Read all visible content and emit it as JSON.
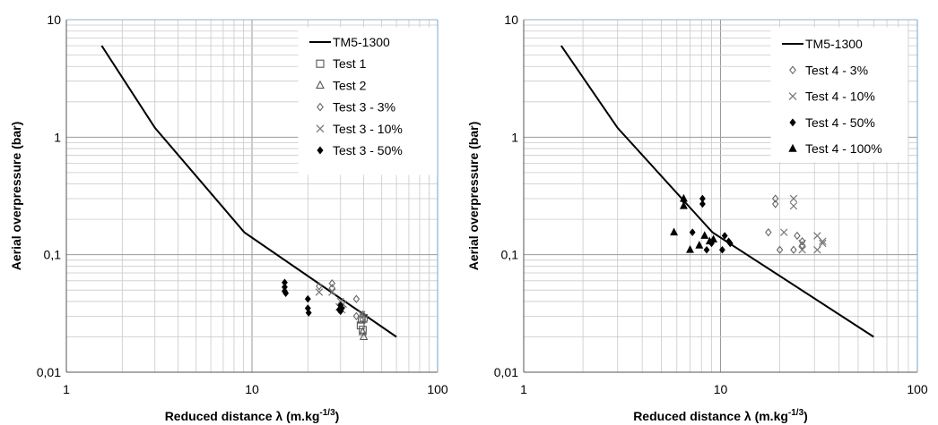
{
  "chart_data": [
    {
      "type": "scatter",
      "xscale": "log",
      "yscale": "log",
      "xlim": [
        1,
        100
      ],
      "ylim": [
        0.01,
        10
      ],
      "xticks": [
        "1",
        "10",
        "100"
      ],
      "yticks": [
        "0,01",
        "0,1",
        "1",
        "10"
      ],
      "xlabel": "Reduced distance λ (m.kg",
      "xlabel_sup": "-1/3",
      "xlabel_end": ")",
      "ylabel": "Aerial overpressure (bar)",
      "grid": true,
      "legend_position": "top-right",
      "series": [
        {
          "name": "TM5-1300",
          "marker": "line",
          "color": "#000000",
          "points": [
            [
              1.55,
              6
            ],
            [
              3,
              1.2
            ],
            [
              9.1,
              0.155
            ],
            [
              60,
              0.02
            ]
          ]
        },
        {
          "name": "Test 1",
          "marker": "square",
          "color": "#555555",
          "points": [
            [
              39,
              0.028
            ],
            [
              39.5,
              0.023
            ],
            [
              40,
              0.029
            ],
            [
              38.5,
              0.025
            ]
          ]
        },
        {
          "name": "Test 2",
          "marker": "triangle-open",
          "color": "#555555",
          "points": [
            [
              40,
              0.02
            ],
            [
              39.5,
              0.022
            ]
          ]
        },
        {
          "name": "Test 3 - 3%",
          "marker": "diamond-open",
          "color": "#666666",
          "points": [
            [
              27,
              0.057
            ],
            [
              27,
              0.052
            ],
            [
              30,
              0.035
            ],
            [
              36.5,
              0.042
            ],
            [
              36.5,
              0.03
            ],
            [
              23,
              0.054
            ],
            [
              39.5,
              0.031
            ]
          ]
        },
        {
          "name": "Test 3 - 10%",
          "marker": "x",
          "color": "#777777",
          "points": [
            [
              23,
              0.048
            ],
            [
              27,
              0.048
            ],
            [
              29.5,
              0.036
            ],
            [
              30,
              0.04
            ],
            [
              30.5,
              0.034
            ],
            [
              39,
              0.031
            ],
            [
              40,
              0.028
            ],
            [
              31,
              0.038
            ]
          ]
        },
        {
          "name": "Test 3 - 50%",
          "marker": "diamond",
          "color": "#000000",
          "points": [
            [
              15,
              0.058
            ],
            [
              15,
              0.053
            ],
            [
              15,
              0.049
            ],
            [
              15.2,
              0.047
            ],
            [
              20,
              0.042
            ],
            [
              20,
              0.035
            ],
            [
              20.2,
              0.032
            ],
            [
              29.5,
              0.034
            ],
            [
              30,
              0.033
            ],
            [
              30.5,
              0.035
            ],
            [
              30,
              0.037
            ]
          ]
        }
      ]
    },
    {
      "type": "scatter",
      "xscale": "log",
      "yscale": "log",
      "xlim": [
        1,
        100
      ],
      "ylim": [
        0.01,
        10
      ],
      "xticks": [
        "1",
        "10",
        "100"
      ],
      "yticks": [
        "0,01",
        "0,1",
        "1",
        "10"
      ],
      "xlabel": "Reduced distance λ (m.kg",
      "xlabel_sup": "-1/3",
      "xlabel_end": ")",
      "ylabel": "Aerial overpressure (bar)",
      "grid": true,
      "legend_position": "top-right",
      "series": [
        {
          "name": "TM5-1300",
          "marker": "line",
          "color": "#000000",
          "points": [
            [
              1.55,
              6
            ],
            [
              3,
              1.2
            ],
            [
              9.1,
              0.155
            ],
            [
              60,
              0.02
            ]
          ]
        },
        {
          "name": "Test 4 - 3%",
          "marker": "diamond-open",
          "color": "#666666",
          "points": [
            [
              17.5,
              0.155
            ],
            [
              19,
              0.3
            ],
            [
              19,
              0.27
            ],
            [
              20,
              0.11
            ],
            [
              23.5,
              0.11
            ],
            [
              24.5,
              0.145
            ],
            [
              26,
              0.13
            ],
            [
              26,
              0.12
            ]
          ]
        },
        {
          "name": "Test 4 - 10%",
          "marker": "x",
          "color": "#777777",
          "points": [
            [
              23.5,
              0.3
            ],
            [
              23.5,
              0.26
            ],
            [
              21,
              0.155
            ],
            [
              26,
              0.11
            ],
            [
              31,
              0.145
            ],
            [
              31,
              0.11
            ],
            [
              33,
              0.13
            ],
            [
              33,
              0.125
            ],
            [
              26,
              0.125
            ]
          ]
        },
        {
          "name": "Test 4 - 50%",
          "marker": "diamond",
          "color": "#000000",
          "points": [
            [
              6.5,
              0.29
            ],
            [
              8.1,
              0.3
            ],
            [
              8.1,
              0.27
            ],
            [
              7.2,
              0.155
            ],
            [
              8.5,
              0.11
            ],
            [
              9,
              0.125
            ],
            [
              10.5,
              0.145
            ],
            [
              11,
              0.13
            ],
            [
              11.2,
              0.125
            ],
            [
              10.2,
              0.11
            ]
          ]
        },
        {
          "name": "Test 4 - 100%",
          "marker": "triangle",
          "color": "#000000",
          "points": [
            [
              6.5,
              0.3
            ],
            [
              6.5,
              0.26
            ],
            [
              5.8,
              0.155
            ],
            [
              7,
              0.11
            ],
            [
              7.8,
              0.12
            ],
            [
              8.3,
              0.145
            ],
            [
              8.8,
              0.13
            ],
            [
              9.2,
              0.135
            ]
          ]
        }
      ]
    }
  ]
}
